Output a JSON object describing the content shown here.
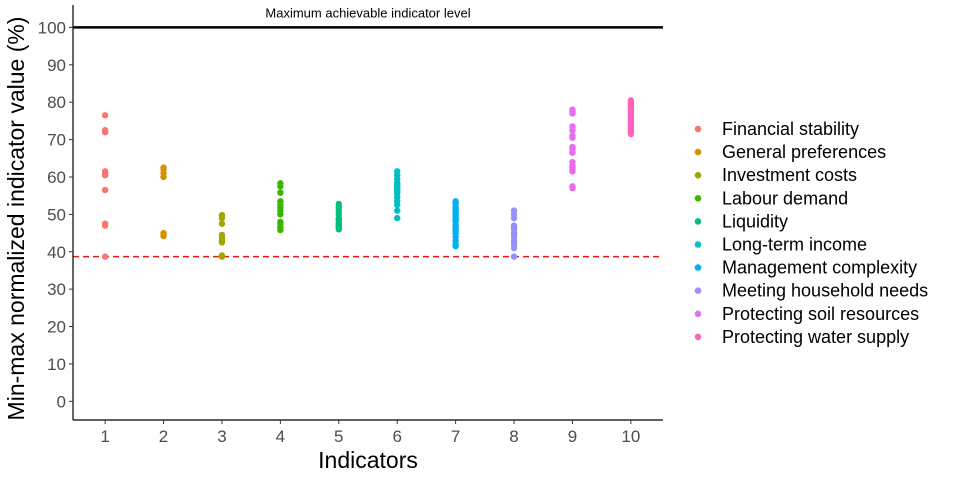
{
  "chart_data": {
    "type": "scatter",
    "title": "",
    "xlabel": "Indicators",
    "ylabel": "Min-max normalized indicator value (%)",
    "x_ticks": [
      "1",
      "2",
      "3",
      "4",
      "5",
      "6",
      "7",
      "8",
      "9",
      "10"
    ],
    "y_ticks": [
      "0",
      "10",
      "20",
      "30",
      "40",
      "50",
      "60",
      "70",
      "80",
      "90",
      "100"
    ],
    "xlim": [
      0.45,
      10.55
    ],
    "ylim": [
      -5,
      106
    ],
    "grid": false,
    "legend_position": "right",
    "reference_lines": [
      {
        "y": 100,
        "style": "solid",
        "color": "#000000",
        "label": "Maximum achievable indicator level"
      },
      {
        "y": 38.7,
        "style": "dashed",
        "color": "#E41A1C",
        "label": ""
      }
    ],
    "series": [
      {
        "name": "Financial stability",
        "color": "#F8766D",
        "x": 1,
        "values": [
          76.5,
          72.5,
          72.0,
          61.5,
          61.0,
          60.5,
          56.5,
          47.5,
          47.0,
          38.7
        ]
      },
      {
        "name": "General preferences",
        "color": "#D89000",
        "x": 2,
        "values": [
          62.5,
          62.0,
          61.0,
          60.0,
          45.0,
          44.2
        ]
      },
      {
        "name": "Investment costs",
        "color": "#A3A500",
        "x": 3,
        "values": [
          49.8,
          49.0,
          47.5,
          44.5,
          43.8,
          43.0,
          42.5,
          39.0,
          38.7
        ]
      },
      {
        "name": "Labour demand",
        "color": "#39B600",
        "x": 4,
        "values": [
          58.3,
          57.5,
          55.8,
          53.5,
          52.5,
          51.8,
          51.0,
          50.0,
          48.0,
          47.5,
          46.5,
          45.8
        ]
      },
      {
        "name": "Liquidity",
        "color": "#00BF7D",
        "x": 5,
        "values": [
          52.8,
          52.0,
          51.5,
          50.8,
          50.0,
          49.0,
          48.5,
          48.0,
          47.5,
          47.0,
          46.5,
          46.0
        ]
      },
      {
        "name": "Long-term income",
        "color": "#00BFC4",
        "x": 6,
        "values": [
          61.5,
          60.5,
          59.5,
          58.5,
          58.0,
          57.5,
          57.0,
          56.5,
          56.0,
          55.5,
          54.5,
          53.5,
          52.5,
          51.0,
          49.0
        ]
      },
      {
        "name": "Management complexity",
        "color": "#00B0F6",
        "x": 7,
        "values": [
          53.5,
          53.0,
          52.0,
          51.5,
          51.0,
          50.5,
          50.0,
          49.5,
          49.0,
          48.5,
          48.0,
          47.0,
          46.5,
          46.0,
          45.5,
          45.0,
          44.0,
          43.0,
          42.0,
          41.5
        ]
      },
      {
        "name": "Meeting household needs",
        "color": "#9590FF",
        "x": 8,
        "values": [
          51.0,
          50.0,
          49.0,
          47.0,
          46.5,
          46.0,
          45.0,
          44.5,
          44.0,
          43.0,
          42.5,
          42.0,
          41.0,
          38.7
        ]
      },
      {
        "name": "Protecting soil resources",
        "color": "#E76BF3",
        "x": 9,
        "values": [
          78.0,
          77.5,
          77.0,
          73.5,
          72.5,
          71.0,
          70.5,
          68.0,
          67.5,
          66.5,
          64.0,
          63.0,
          62.5,
          62.0,
          61.5,
          57.5,
          57.0
        ]
      },
      {
        "name": "Protecting water supply",
        "color": "#FF62BC",
        "x": 10,
        "values": [
          80.5,
          80.0,
          79.5,
          79.0,
          78.5,
          78.0,
          77.5,
          77.0,
          76.5,
          76.0,
          75.5,
          75.0,
          74.5,
          74.0,
          73.5,
          73.0,
          72.5,
          72.0,
          71.5
        ]
      }
    ]
  }
}
